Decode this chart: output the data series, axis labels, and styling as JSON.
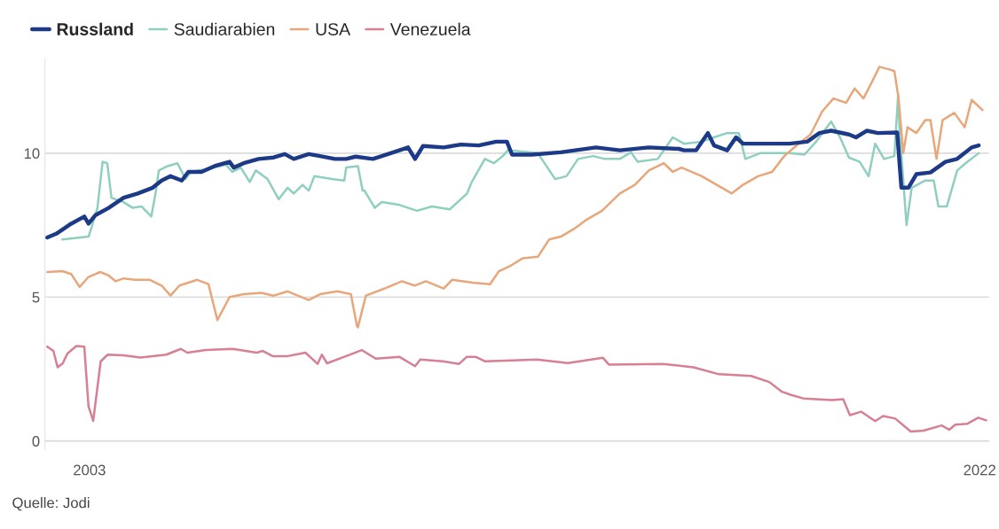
{
  "chart_data": {
    "type": "line",
    "xlim": [
      2002.05,
      2022.2
    ],
    "xticks": [
      2003,
      2022
    ],
    "ylim": [
      -0.3,
      13.3
    ],
    "yticks": [
      0,
      5,
      10
    ],
    "grid": "y",
    "legend": "top left",
    "line_style": "solid",
    "marker": "none",
    "annotations": [
      "Quelle: Jodi"
    ],
    "series": [
      {
        "name": "Russland",
        "color": "#1c3a87",
        "x": [
          2002.1,
          2002.29,
          2002.61,
          2002.89,
          2002.98,
          2003.13,
          2003.41,
          2003.73,
          2004.03,
          2004.35,
          2004.54,
          2004.73,
          2004.97,
          2005.11,
          2005.39,
          2005.67,
          2005.99,
          2006.08,
          2006.29,
          2006.61,
          2006.93,
          2007.17,
          2007.36,
          2007.68,
          2007.92,
          2008.24,
          2008.48,
          2008.68,
          2009.05,
          2009.43,
          2009.8,
          2009.95,
          2010.12,
          2010.56,
          2010.93,
          2011.31,
          2011.68,
          2011.91,
          2012.02,
          2012.44,
          2013.06,
          2013.81,
          2014.32,
          2014.94,
          2015.58,
          2015.69,
          2015.95,
          2016.2,
          2016.33,
          2016.61,
          2016.8,
          2016.95,
          2017.32,
          2017.94,
          2018.32,
          2018.58,
          2018.83,
          2019.21,
          2019.36,
          2019.59,
          2019.83,
          2020.24,
          2020.33,
          2020.48,
          2020.65,
          2020.95,
          2021.27,
          2021.52,
          2021.83,
          2021.98
        ],
        "values": [
          7.07,
          7.2,
          7.55,
          7.8,
          7.55,
          7.85,
          8.1,
          8.45,
          8.6,
          8.8,
          9.05,
          9.2,
          9.05,
          9.35,
          9.35,
          9.55,
          9.7,
          9.5,
          9.65,
          9.8,
          9.85,
          9.97,
          9.8,
          9.97,
          9.9,
          9.8,
          9.8,
          9.88,
          9.8,
          10.0,
          10.2,
          9.8,
          10.25,
          10.2,
          10.3,
          10.27,
          10.4,
          10.4,
          9.95,
          9.95,
          10.03,
          10.2,
          10.1,
          10.2,
          10.15,
          10.1,
          10.1,
          10.7,
          10.27,
          10.1,
          10.55,
          10.33,
          10.33,
          10.33,
          10.4,
          10.7,
          10.78,
          10.65,
          10.55,
          10.78,
          10.7,
          10.72,
          8.8,
          8.8,
          9.27,
          9.33,
          9.7,
          9.8,
          10.2,
          10.27
        ]
      },
      {
        "name": "Saudiarabien",
        "color": "#8fcfc0",
        "x": [
          2002.42,
          2002.98,
          2003.04,
          2003.17,
          2003.28,
          2003.38,
          2003.47,
          2003.73,
          2003.92,
          2004.11,
          2004.32,
          2004.41,
          2004.48,
          2004.67,
          2004.88,
          2005.05,
          2005.16,
          2005.67,
          2005.91,
          2006.05,
          2006.23,
          2006.42,
          2006.55,
          2006.8,
          2007.04,
          2007.23,
          2007.36,
          2007.55,
          2007.68,
          2007.8,
          2008.17,
          2008.44,
          2008.48,
          2008.73,
          2008.83,
          2008.87,
          2009.09,
          2009.24,
          2009.62,
          2009.99,
          2010.31,
          2010.69,
          2011.06,
          2011.16,
          2011.44,
          2011.63,
          2011.82,
          2011.93,
          2012.57,
          2012.94,
          2013.18,
          2013.43,
          2013.75,
          2014.0,
          2014.32,
          2014.56,
          2014.7,
          2015.13,
          2015.45,
          2015.69,
          2016.07,
          2016.33,
          2016.61,
          2016.86,
          2017.0,
          2017.32,
          2017.94,
          2018.26,
          2018.51,
          2018.83,
          2019.02,
          2019.21,
          2019.44,
          2019.63,
          2019.77,
          2019.96,
          2020.18,
          2020.26,
          2020.29,
          2020.44,
          2020.55,
          2020.84,
          2021.02,
          2021.12,
          2021.3,
          2021.52,
          2021.7,
          2021.98
        ],
        "values": [
          7.0,
          7.1,
          7.4,
          8.1,
          9.7,
          9.65,
          8.45,
          8.3,
          8.1,
          8.15,
          7.8,
          8.6,
          9.4,
          9.55,
          9.65,
          9.1,
          9.35,
          9.5,
          9.6,
          9.35,
          9.5,
          9.0,
          9.4,
          9.1,
          8.4,
          8.8,
          8.6,
          8.9,
          8.7,
          9.2,
          9.1,
          9.05,
          9.5,
          9.55,
          8.7,
          8.7,
          8.1,
          8.3,
          8.2,
          8.0,
          8.15,
          8.05,
          8.6,
          9.0,
          9.8,
          9.65,
          9.9,
          10.1,
          10.0,
          9.1,
          9.2,
          9.8,
          9.9,
          9.8,
          9.8,
          10.03,
          9.7,
          9.8,
          10.55,
          10.33,
          10.4,
          10.55,
          10.7,
          10.7,
          9.8,
          10.0,
          10.0,
          9.95,
          10.4,
          11.1,
          10.55,
          9.85,
          9.7,
          9.2,
          10.33,
          9.8,
          9.9,
          12.05,
          10.85,
          7.5,
          8.8,
          9.05,
          9.05,
          8.15,
          8.15,
          9.4,
          9.65,
          10.0
        ]
      },
      {
        "name": "USA",
        "color": "#e8a77a",
        "x": [
          2002.1,
          2002.42,
          2002.61,
          2002.79,
          2002.98,
          2003.23,
          2003.41,
          2003.56,
          2003.73,
          2003.97,
          2004.29,
          2004.54,
          2004.73,
          2004.92,
          2005.3,
          2005.54,
          2005.73,
          2005.99,
          2006.29,
          2006.67,
          2006.93,
          2007.23,
          2007.68,
          2007.92,
          2008.29,
          2008.58,
          2008.71,
          2008.73,
          2008.9,
          2009.3,
          2009.67,
          2009.94,
          2010.18,
          2010.56,
          2010.74,
          2011.18,
          2011.55,
          2011.74,
          2012.0,
          2012.25,
          2012.57,
          2012.81,
          2013.06,
          2013.37,
          2013.62,
          2013.94,
          2014.32,
          2014.64,
          2014.94,
          2015.26,
          2015.45,
          2015.64,
          2016.07,
          2016.39,
          2016.71,
          2016.95,
          2017.27,
          2017.57,
          2017.83,
          2018.08,
          2018.39,
          2018.64,
          2018.88,
          2019.15,
          2019.33,
          2019.52,
          2019.71,
          2019.86,
          2020.09,
          2020.18,
          2020.27,
          2020.37,
          2020.46,
          2020.65,
          2020.84,
          2020.95,
          2021.08,
          2021.21,
          2021.46,
          2021.68,
          2021.83,
          2022.06
        ],
        "values": [
          5.87,
          5.9,
          5.8,
          5.35,
          5.7,
          5.87,
          5.75,
          5.55,
          5.65,
          5.6,
          5.6,
          5.4,
          5.05,
          5.4,
          5.6,
          5.45,
          4.2,
          5.0,
          5.1,
          5.15,
          5.05,
          5.2,
          4.9,
          5.1,
          5.2,
          5.1,
          4.0,
          3.95,
          5.05,
          5.3,
          5.55,
          5.4,
          5.55,
          5.3,
          5.6,
          5.5,
          5.45,
          5.9,
          6.1,
          6.35,
          6.4,
          7.0,
          7.1,
          7.4,
          7.7,
          8.0,
          8.6,
          8.9,
          9.4,
          9.65,
          9.35,
          9.5,
          9.2,
          8.9,
          8.6,
          8.9,
          9.2,
          9.35,
          9.9,
          10.25,
          10.65,
          11.45,
          11.9,
          11.75,
          12.25,
          11.9,
          12.5,
          13.0,
          12.9,
          12.85,
          11.9,
          10.0,
          10.9,
          10.7,
          11.15,
          11.15,
          9.8,
          11.15,
          11.4,
          10.9,
          11.85,
          11.5
        ]
      },
      {
        "name": "Venezuela",
        "color": "#d77f93",
        "x": [
          2002.1,
          2002.23,
          2002.32,
          2002.43,
          2002.53,
          2002.72,
          2002.89,
          2002.98,
          2003.08,
          2003.24,
          2003.39,
          2003.73,
          2004.09,
          2004.64,
          2004.95,
          2005.09,
          2005.48,
          2006.06,
          2006.57,
          2006.7,
          2006.91,
          2007.23,
          2007.61,
          2007.87,
          2007.96,
          2008.07,
          2008.53,
          2008.81,
          2009.11,
          2009.62,
          2009.95,
          2010.06,
          2010.54,
          2010.89,
          2011.05,
          2011.25,
          2011.44,
          2012.02,
          2012.55,
          2013.21,
          2013.96,
          2014.09,
          2015.24,
          2015.89,
          2016.44,
          2017.12,
          2017.51,
          2017.77,
          2017.98,
          2018.24,
          2018.85,
          2019.09,
          2019.23,
          2019.47,
          2019.77,
          2019.94,
          2020.2,
          2020.53,
          2020.8,
          2021.19,
          2021.35,
          2021.48,
          2021.74,
          2021.97,
          2022.14
        ],
        "values": [
          3.28,
          3.13,
          2.56,
          2.7,
          3.04,
          3.3,
          3.28,
          1.2,
          0.7,
          2.77,
          3.0,
          2.98,
          2.9,
          3.0,
          3.2,
          3.07,
          3.16,
          3.2,
          3.07,
          3.13,
          2.95,
          2.95,
          3.07,
          2.68,
          3.0,
          2.7,
          2.98,
          3.16,
          2.86,
          2.92,
          2.6,
          2.83,
          2.77,
          2.68,
          2.92,
          2.92,
          2.77,
          2.8,
          2.83,
          2.71,
          2.89,
          2.65,
          2.68,
          2.56,
          2.32,
          2.26,
          2.05,
          1.72,
          1.6,
          1.48,
          1.42,
          1.45,
          0.9,
          1.02,
          0.69,
          0.87,
          0.78,
          0.33,
          0.36,
          0.54,
          0.39,
          0.57,
          0.6,
          0.81,
          0.72
        ]
      }
    ]
  }
}
